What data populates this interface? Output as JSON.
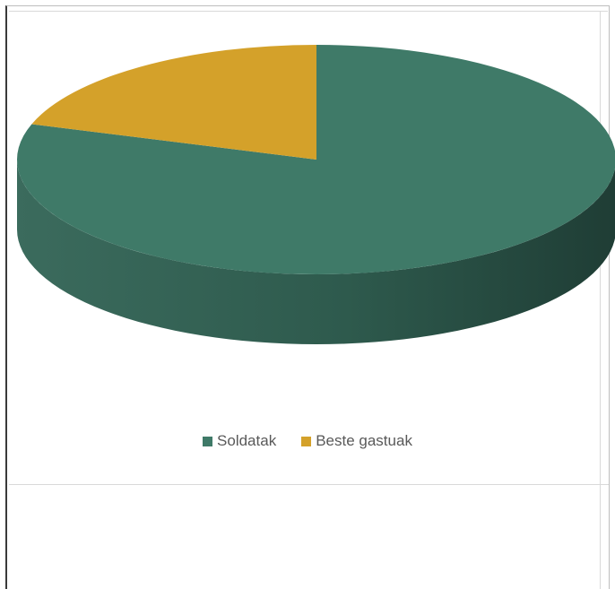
{
  "chart_data": {
    "type": "pie",
    "style": "3d",
    "title": "",
    "series": [
      {
        "label": "Soldatak",
        "value": 80,
        "color": "#3f7a68"
      },
      {
        "label": "Beste gastuak",
        "value": 20,
        "color": "#d4a12a"
      }
    ],
    "legend_position": "bottom"
  }
}
